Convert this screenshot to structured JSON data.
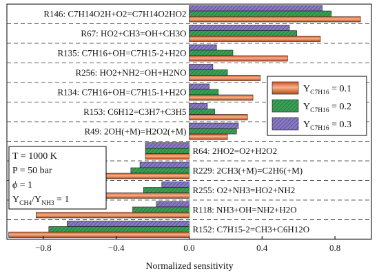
{
  "chart_data": {
    "type": "bar",
    "orientation": "horizontal",
    "xlabel": "Normalized sensitivity",
    "ylabel": "",
    "xlim": [
      -1.0,
      1.0
    ],
    "x_ticks": [
      -0.8,
      -0.4,
      0.0,
      0.4,
      0.8
    ],
    "x_tick_labels": [
      "−0.8",
      "−0.4",
      "0.0",
      "0.4",
      "0.8"
    ],
    "grid": false,
    "legend_position": "right",
    "categories": [
      "R146: C7H14O2H+O2=C7H14O2HO2",
      "R67: HO2+CH3=OH+CH3O",
      "R135: C7H16+OH=C7H15-2+H2O",
      "R256: HO2+NH2=OH+H2NO",
      "R134: C7H16+OH=C7H15-1+H2O",
      "R153: C6H12=C3H7+C3H5",
      "R49: 2OH(+M)=H2O2(+M)",
      "R64: 2HO2=O2+H2O2",
      "R229: 2CH3(+M)=C2H6(+M)",
      "R255: O2+NH3=HO2+NH2",
      "R118: NH3+OH=NH2+H2O",
      "R152: C7H15-2=CH3+C6H12O"
    ],
    "series": [
      {
        "name_main": "Y",
        "name_sub": "C7H16",
        "name_value": "= 0.1",
        "color": "#e9875a",
        "pattern": "solid",
        "values": [
          0.94,
          0.72,
          0.54,
          0.39,
          0.35,
          0.32,
          0.21,
          -0.24,
          -0.5,
          -0.53,
          -0.84,
          -0.99
        ]
      },
      {
        "name_main": "Y",
        "name_sub": "C7H16",
        "name_value": "= 0.2",
        "color": "#3aa055",
        "pattern": "diagonal",
        "values": [
          0.78,
          0.59,
          0.24,
          0.21,
          0.16,
          0.14,
          0.26,
          -0.24,
          -0.32,
          -0.25,
          -0.31,
          -0.77
        ]
      },
      {
        "name_main": "Y",
        "name_sub": "C7H16",
        "name_value": "= 0.3",
        "color": "#8a79c4",
        "pattern": "diagonal",
        "values": [
          0.73,
          0.55,
          0.15,
          0.13,
          0.11,
          0.1,
          0.27,
          -0.24,
          -0.27,
          -0.15,
          -0.18,
          -0.67
        ]
      }
    ],
    "conditions": [
      {
        "text": "T = 1000 K"
      },
      {
        "text": "P = 50 bar"
      },
      {
        "phi": "ϕ",
        "text": " = 1"
      },
      {
        "y1": "Y",
        "s1": "CH4",
        "slash": "/",
        "y2": "Y",
        "s2": "NH3",
        "text": " = 1"
      }
    ]
  }
}
